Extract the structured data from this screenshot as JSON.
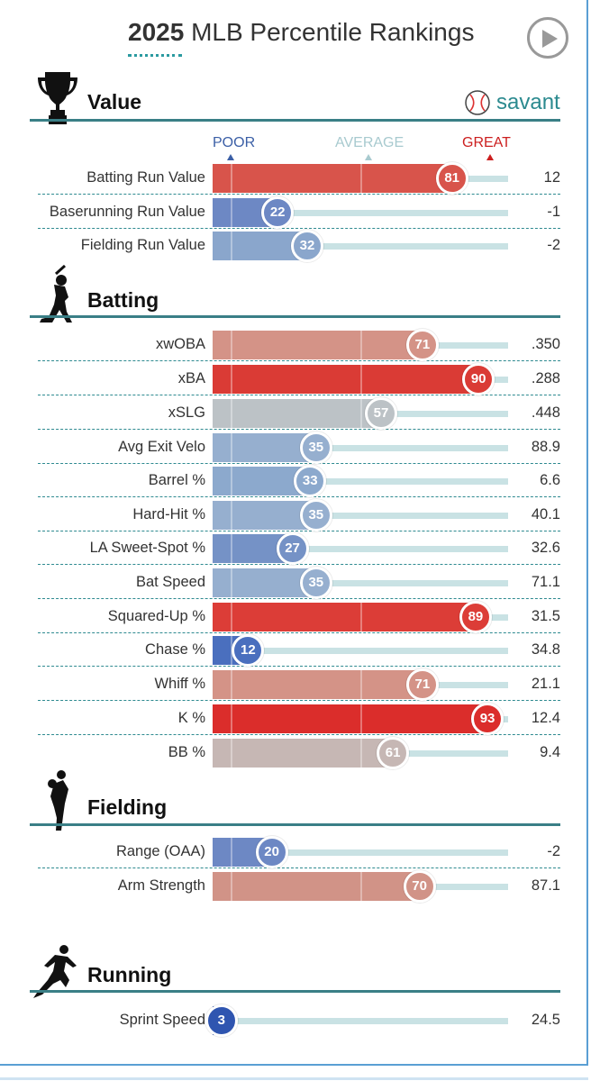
{
  "header": {
    "title_year": "2025",
    "title_rest": "MLB Percentile Rankings"
  },
  "brand": {
    "savant_label": "savant"
  },
  "scale": {
    "poor": "POOR",
    "average": "AVERAGE",
    "great": "GREAT",
    "poor_color": "#3b5fa6",
    "average_color": "#a8cacf",
    "great_color": "#cc1f1f"
  },
  "sections": [
    {
      "title": "Value",
      "icon": "trophy-icon",
      "rows": [
        {
          "label": "Batting Run Value",
          "percentile": 81,
          "value": "12",
          "color": "#d8544b"
        },
        {
          "label": "Baserunning Run Value",
          "percentile": 22,
          "value": "-1",
          "color": "#6d88c4"
        },
        {
          "label": "Fielding Run Value",
          "percentile": 32,
          "value": "-2",
          "color": "#8aa6cc"
        }
      ]
    },
    {
      "title": "Batting",
      "icon": "batter-icon",
      "rows": [
        {
          "label": "xwOBA",
          "percentile": 71,
          "value": ".350",
          "color": "#d49387"
        },
        {
          "label": "xBA",
          "percentile": 90,
          "value": ".288",
          "color": "#da3b35"
        },
        {
          "label": "xSLG",
          "percentile": 57,
          "value": ".448",
          "color": "#bcc2c6"
        },
        {
          "label": "Avg Exit Velo",
          "percentile": 35,
          "value": "88.9",
          "color": "#96afcf"
        },
        {
          "label": "Barrel %",
          "percentile": 33,
          "value": "6.6",
          "color": "#8ca9cd"
        },
        {
          "label": "Hard-Hit %",
          "percentile": 35,
          "value": "40.1",
          "color": "#96afcf"
        },
        {
          "label": "LA Sweet-Spot %",
          "percentile": 27,
          "value": "32.6",
          "color": "#7592c6"
        },
        {
          "label": "Bat Speed",
          "percentile": 35,
          "value": "71.1",
          "color": "#96afcf"
        },
        {
          "label": "Squared-Up %",
          "percentile": 89,
          "value": "31.5",
          "color": "#dc3d37"
        },
        {
          "label": "Chase %",
          "percentile": 12,
          "value": "34.8",
          "color": "#4a6fbe"
        },
        {
          "label": "Whiff %",
          "percentile": 71,
          "value": "21.1",
          "color": "#d49387"
        },
        {
          "label": "K %",
          "percentile": 93,
          "value": "12.4",
          "color": "#db2d2b"
        },
        {
          "label": "BB %",
          "percentile": 61,
          "value": "9.4",
          "color": "#c6b7b4"
        }
      ]
    },
    {
      "title": "Fielding",
      "icon": "fielder-icon",
      "rows": [
        {
          "label": "Range (OAA)",
          "percentile": 20,
          "value": "-2",
          "color": "#6d88c4"
        },
        {
          "label": "Arm Strength",
          "percentile": 70,
          "value": "87.1",
          "color": "#d19387"
        }
      ]
    },
    {
      "title": "Running",
      "icon": "runner-icon",
      "rows": [
        {
          "label": "Sprint Speed",
          "percentile": 3,
          "value": "24.5",
          "color": "#2f55b0"
        }
      ]
    }
  ]
}
